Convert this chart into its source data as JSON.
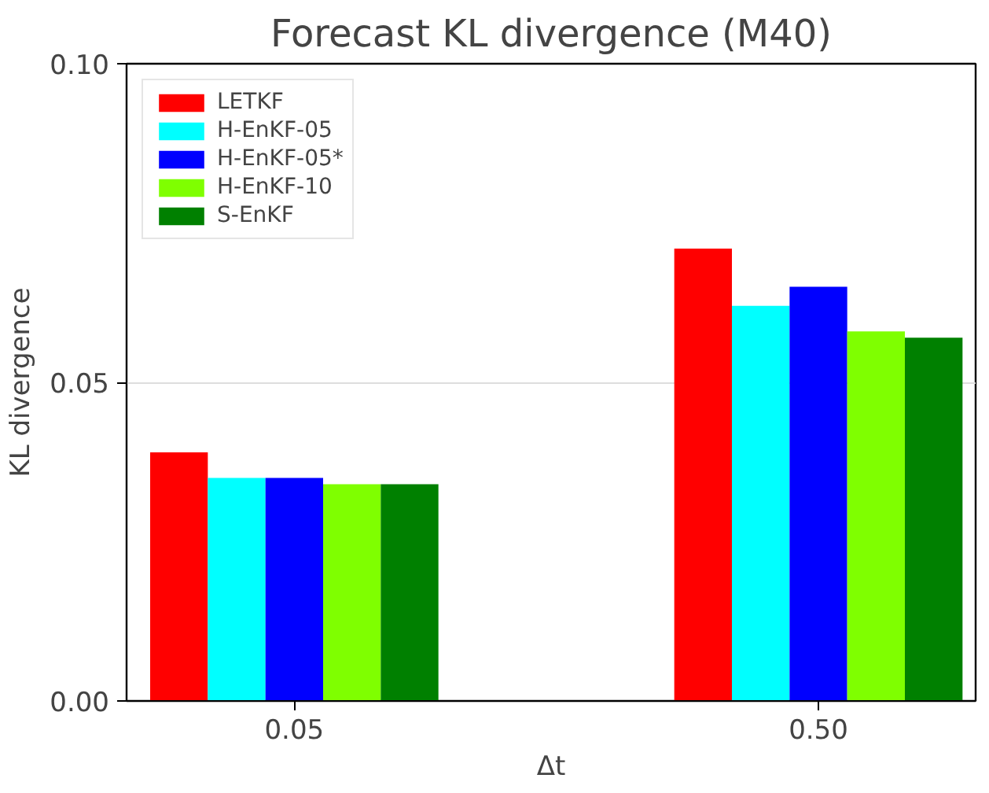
{
  "chart_data": {
    "type": "bar",
    "title": "Forecast KL divergence (M40)",
    "xlabel": "Δt",
    "ylabel": "KL divergence",
    "categories": [
      "0.05",
      "0.50"
    ],
    "series": [
      {
        "name": "LETKF",
        "color": "#ff0000",
        "values": [
          0.039,
          0.071
        ]
      },
      {
        "name": "H-EnKF-05",
        "color": "#00ffff",
        "values": [
          0.035,
          0.062
        ]
      },
      {
        "name": "H-EnKF-05*",
        "color": "#0000ff",
        "values": [
          0.035,
          0.065
        ]
      },
      {
        "name": "H-EnKF-10",
        "color": "#7fff00",
        "values": [
          0.034,
          0.058
        ]
      },
      {
        "name": "S-EnKF",
        "color": "#008000",
        "values": [
          0.034,
          0.057
        ]
      }
    ],
    "ylim": [
      0,
      0.1
    ],
    "yticks": [
      {
        "value": 0,
        "label": "0.00"
      },
      0.05,
      {
        "value": 0.1,
        "label": "0.10"
      }
    ],
    "grid": "y",
    "legend": "top left"
  }
}
